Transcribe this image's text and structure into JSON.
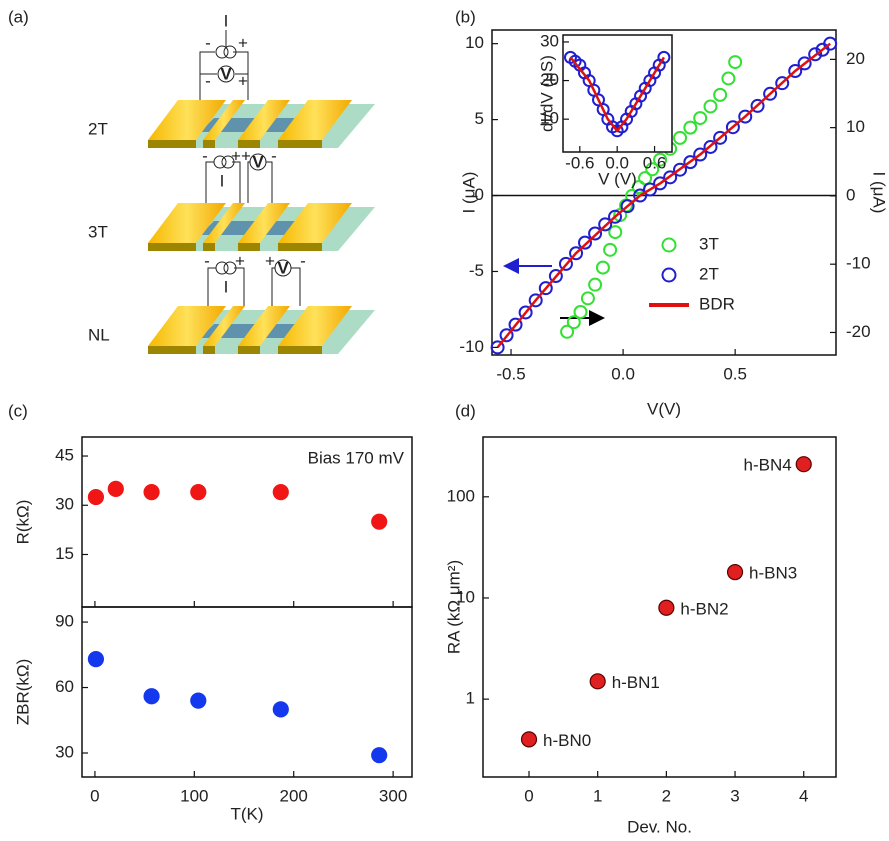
{
  "schematic": {
    "panel_label": "(a)",
    "rows": [
      "2T",
      "3T",
      "NL"
    ],
    "current_symbol": "I",
    "voltage_symbol": "V",
    "plus": "+",
    "minus": "-"
  },
  "chart_data": [
    {
      "type": "scatter",
      "panel_label": "(b)",
      "xlabel": "V(V)",
      "ylabel": "I (μA)",
      "y2label": "I (μA)",
      "xlim": [
        -0.585,
        0.95
      ],
      "ylim": [
        -10.5,
        10.9
      ],
      "y2lim": [
        -23.3,
        24.3
      ],
      "xticks": [
        -0.5,
        {
          "value": 0,
          "label": "0.0"
        },
        0.5
      ],
      "yticks": [
        -10,
        -5,
        0,
        5,
        10
      ],
      "y2ticks": [
        -20,
        -10,
        0,
        10,
        20
      ],
      "zero_line": true,
      "legend": "lower right",
      "series": [
        {
          "name": "3T",
          "color": "#33e033",
          "marker": "open",
          "axis": "y2",
          "x": [
            -0.25,
            -0.22,
            -0.19,
            -0.157,
            -0.125,
            -0.09,
            -0.058,
            -0.035,
            -0.013,
            0.013,
            0.04,
            0.07,
            0.098,
            0.13,
            0.165,
            0.21,
            0.254,
            0.3,
            0.344,
            0.39,
            0.433,
            0.47,
            0.5
          ],
          "values": [
            -19.9,
            -18.5,
            -17,
            -15,
            -13,
            -10.5,
            -7.9,
            -5.3,
            -2.8,
            -1.4,
            0,
            1.3,
            2.6,
            3.9,
            5.3,
            6.9,
            8.5,
            10,
            11.4,
            13.1,
            14.8,
            17.2,
            19.6
          ]
        },
        {
          "name": "2T",
          "color": "#1f1fd0",
          "marker": "open",
          "x": [
            -0.56,
            -0.52,
            -0.48,
            -0.435,
            -0.39,
            -0.345,
            -0.3,
            -0.255,
            -0.21,
            -0.17,
            -0.125,
            -0.08,
            -0.036,
            0.02,
            0.076,
            0.12,
            0.165,
            0.21,
            0.254,
            0.3,
            0.344,
            0.39,
            0.433,
            0.49,
            0.545,
            0.6,
            0.656,
            0.71,
            0.768,
            0.81,
            0.857,
            0.89,
            0.924
          ],
          "values": [
            -10,
            -9.2,
            -8.5,
            -7.7,
            -6.9,
            -6.1,
            -5.3,
            -4.5,
            -3.8,
            -3.1,
            -2.5,
            -1.9,
            -1.4,
            -0.7,
            0,
            0.4,
            0.8,
            1.2,
            1.7,
            2.2,
            2.7,
            3.2,
            3.8,
            4.5,
            5.2,
            5.9,
            6.7,
            7.4,
            8.2,
            8.7,
            9.3,
            9.6,
            10
          ]
        },
        {
          "name": "BDR",
          "color": "#e01010",
          "marker": "line",
          "x": [
            -0.56,
            -0.39,
            -0.21,
            -0.036,
            0.076,
            0.165,
            0.344,
            0.545,
            0.768,
            0.924
          ],
          "values": [
            -10,
            -6.9,
            -3.8,
            -1.4,
            0,
            0.8,
            2.7,
            5.2,
            8.2,
            10
          ]
        }
      ]
    },
    {
      "type": "scatter",
      "xlabel": "V (V)",
      "ylabel": "dI/dV (μS)",
      "xlim": [
        -0.87,
        0.88
      ],
      "ylim": [
        1.5,
        31.8
      ],
      "xticks": [
        -0.6,
        {
          "value": 0,
          "label": "0.0"
        },
        0.6
      ],
      "yticks": [
        10,
        20,
        30
      ],
      "series": [
        {
          "color": "#1f1fd0",
          "marker": "open",
          "x": [
            -0.75,
            -0.675,
            -0.6,
            -0.525,
            -0.45,
            -0.375,
            -0.3,
            -0.225,
            -0.15,
            -0.075,
            0,
            0.075,
            0.15,
            0.225,
            0.3,
            0.375,
            0.45,
            0.525,
            0.6,
            0.675,
            0.75
          ],
          "values": [
            26,
            25,
            24,
            22,
            20,
            17.5,
            15,
            12.5,
            10,
            8,
            7,
            8,
            10,
            12,
            14,
            16,
            18,
            20,
            22,
            24,
            26
          ]
        },
        {
          "color": "#e01010",
          "marker": "line",
          "x": [
            -0.75,
            -0.45,
            -0.15,
            0,
            0.15,
            0.45,
            0.75
          ],
          "values": [
            26,
            20,
            10,
            7,
            10,
            18,
            26
          ]
        }
      ]
    },
    {
      "type": "scatter",
      "panel_label": "(c)",
      "ylabel": "R(kΩ)",
      "annotation": "Bias 170 mV",
      "xlim": [
        -13,
        319
      ],
      "ylim": [
        -1,
        50.8
      ],
      "xticks": [
        0,
        100,
        200,
        300
      ],
      "xtick_labels": false,
      "yticks": [
        15,
        30,
        45
      ],
      "series": [
        {
          "color": "#f01616",
          "marker": "filled",
          "x": [
            1,
            21,
            57,
            104,
            187,
            286
          ],
          "values": [
            32.5,
            35,
            34,
            34,
            34,
            25
          ]
        }
      ]
    },
    {
      "type": "scatter",
      "xlabel": "T(K)",
      "ylabel": "ZBR(kΩ)",
      "xlim": [
        -13,
        319
      ],
      "ylim": [
        19,
        96.9
      ],
      "xticks": [
        0,
        100,
        200,
        300
      ],
      "yticks": [
        30,
        60,
        90
      ],
      "series": [
        {
          "color": "#1438ee",
          "marker": "filled",
          "x": [
            1,
            57,
            104,
            187,
            286
          ],
          "values": [
            73,
            56,
            54,
            50,
            29
          ]
        }
      ]
    },
    {
      "type": "scatter",
      "panel_label": "(d)",
      "xlabel": "Dev. No.",
      "ylabel": "RA (kΩ μm²)",
      "log_y": true,
      "xlim": [
        -0.67,
        4.47
      ],
      "ylim": [
        0.17,
        390
      ],
      "xticks": [
        0,
        1,
        2,
        3,
        4
      ],
      "yticks": [
        1,
        10,
        100
      ],
      "series": [
        {
          "color": "#e02020",
          "edge": "#5a0000",
          "marker": "filled",
          "x": [
            0,
            1,
            2,
            3,
            4
          ],
          "values": [
            0.4,
            1.5,
            8,
            18,
            210
          ],
          "point_labels": [
            "h-BN0",
            "h-BN1",
            "h-BN2",
            "h-BN3",
            "h-BN4"
          ],
          "label_color": "#8a8a8a"
        }
      ]
    }
  ]
}
